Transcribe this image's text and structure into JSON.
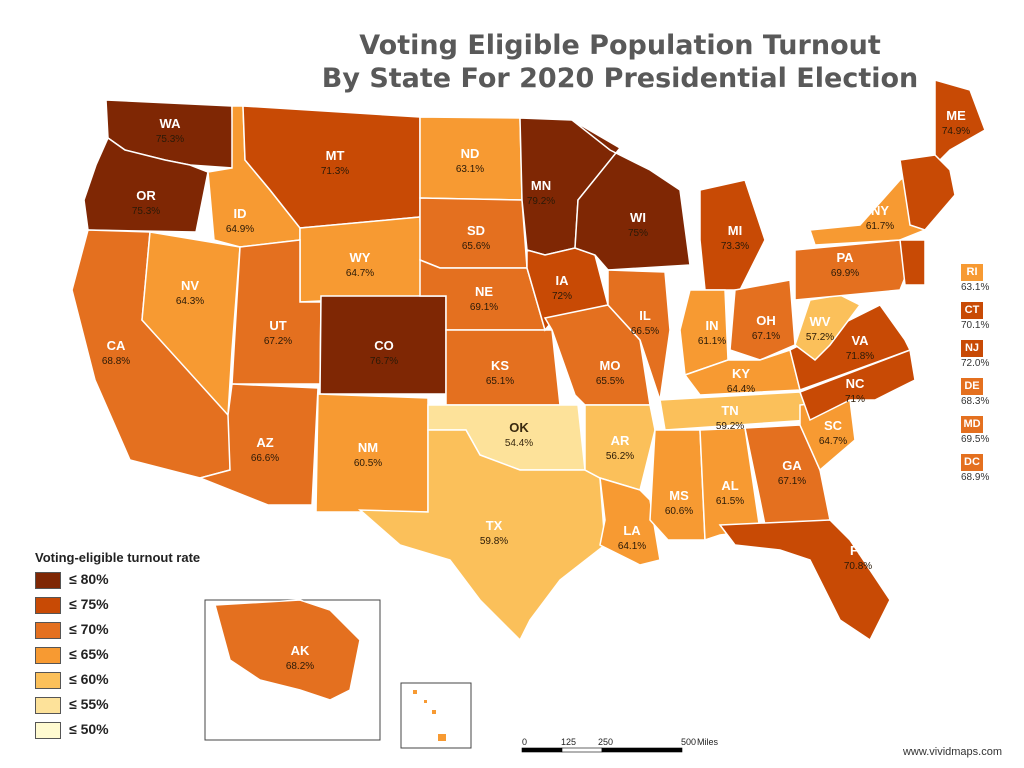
{
  "title": {
    "line1": "Voting Eligible Population Turnout",
    "line2": "By State For 2020 Presidential Election"
  },
  "colors": {
    "le80": "#7f2704",
    "le75": "#c84a05",
    "le70": "#e4701f",
    "le65": "#f79a32",
    "le60": "#fbc05a",
    "le55": "#fde29a",
    "le50": "#fffad0",
    "border": "#ffffff",
    "label_light": "#ffffff",
    "label_dark": "#3a2a10"
  },
  "legend": {
    "title": "Voting-eligible turnout rate",
    "items": [
      {
        "label": "≤ 80%",
        "class": "le80"
      },
      {
        "label": "≤ 75%",
        "class": "le75"
      },
      {
        "label": "≤ 70%",
        "class": "le70"
      },
      {
        "label": "≤ 65%",
        "class": "le65"
      },
      {
        "label": "≤ 60%",
        "class": "le60"
      },
      {
        "label": "≤ 55%",
        "class": "le55"
      },
      {
        "label": "≤ 50%",
        "class": "le50"
      }
    ]
  },
  "states": [
    {
      "abbr": "WA",
      "value": "75.3%",
      "class": "le80"
    },
    {
      "abbr": "OR",
      "value": "75.3%",
      "class": "le80"
    },
    {
      "abbr": "CA",
      "value": "68.8%",
      "class": "le70"
    },
    {
      "abbr": "ID",
      "value": "64.9%",
      "class": "le65"
    },
    {
      "abbr": "NV",
      "value": "64.3%",
      "class": "le65"
    },
    {
      "abbr": "MT",
      "value": "71.3%",
      "class": "le75"
    },
    {
      "abbr": "WY",
      "value": "64.7%",
      "class": "le65"
    },
    {
      "abbr": "UT",
      "value": "67.2%",
      "class": "le70"
    },
    {
      "abbr": "AZ",
      "value": "66.6%",
      "class": "le70"
    },
    {
      "abbr": "CO",
      "value": "76.7%",
      "class": "le80"
    },
    {
      "abbr": "NM",
      "value": "60.5%",
      "class": "le65"
    },
    {
      "abbr": "ND",
      "value": "63.1%",
      "class": "le65"
    },
    {
      "abbr": "SD",
      "value": "65.6%",
      "class": "le70"
    },
    {
      "abbr": "NE",
      "value": "69.1%",
      "class": "le70"
    },
    {
      "abbr": "KS",
      "value": "65.1%",
      "class": "le70"
    },
    {
      "abbr": "OK",
      "value": "54.4%",
      "class": "le55"
    },
    {
      "abbr": "TX",
      "value": "59.8%",
      "class": "le60"
    },
    {
      "abbr": "MN",
      "value": "79.2%",
      "class": "le80"
    },
    {
      "abbr": "IA",
      "value": "72%",
      "class": "le75"
    },
    {
      "abbr": "MO",
      "value": "65.5%",
      "class": "le70"
    },
    {
      "abbr": "AR",
      "value": "56.2%",
      "class": "le60"
    },
    {
      "abbr": "LA",
      "value": "64.1%",
      "class": "le65"
    },
    {
      "abbr": "WI",
      "value": "75%",
      "class": "le80"
    },
    {
      "abbr": "IL",
      "value": "66.5%",
      "class": "le70"
    },
    {
      "abbr": "MI",
      "value": "73.3%",
      "class": "le75"
    },
    {
      "abbr": "IN",
      "value": "61.1%",
      "class": "le65"
    },
    {
      "abbr": "OH",
      "value": "67.1%",
      "class": "le70"
    },
    {
      "abbr": "KY",
      "value": "64.4%",
      "class": "le65"
    },
    {
      "abbr": "TN",
      "value": "59.2%",
      "class": "le60"
    },
    {
      "abbr": "MS",
      "value": "60.6%",
      "class": "le65"
    },
    {
      "abbr": "AL",
      "value": "61.5%",
      "class": "le65"
    },
    {
      "abbr": "GA",
      "value": "67.1%",
      "class": "le70"
    },
    {
      "abbr": "FL",
      "value": "70.8%",
      "class": "le75"
    },
    {
      "abbr": "SC",
      "value": "64.7%",
      "class": "le65"
    },
    {
      "abbr": "NC",
      "value": "71%",
      "class": "le75"
    },
    {
      "abbr": "VA",
      "value": "71.8%",
      "class": "le75"
    },
    {
      "abbr": "WV",
      "value": "57.2%",
      "class": "le60"
    },
    {
      "abbr": "PA",
      "value": "69.9%",
      "class": "le70"
    },
    {
      "abbr": "NY",
      "value": "61.7%",
      "class": "le65"
    },
    {
      "abbr": "ME",
      "value": "74.9%",
      "class": "le75"
    },
    {
      "abbr": "AK",
      "value": "68.2%",
      "class": "le70"
    }
  ],
  "side_states": [
    {
      "abbr": "RI",
      "value": "63.1%",
      "class": "le65"
    },
    {
      "abbr": "CT",
      "value": "70.1%",
      "class": "le75"
    },
    {
      "abbr": "NJ",
      "value": "72.0%",
      "class": "le75"
    },
    {
      "abbr": "DE",
      "value": "68.3%",
      "class": "le70"
    },
    {
      "abbr": "MD",
      "value": "69.5%",
      "class": "le70"
    },
    {
      "abbr": "DC",
      "value": "68.9%",
      "class": "le70"
    }
  ],
  "scale": {
    "ticks": [
      "0",
      "125",
      "250",
      "500"
    ],
    "unit": "Miles"
  },
  "credit": "www.vividmaps.com"
}
